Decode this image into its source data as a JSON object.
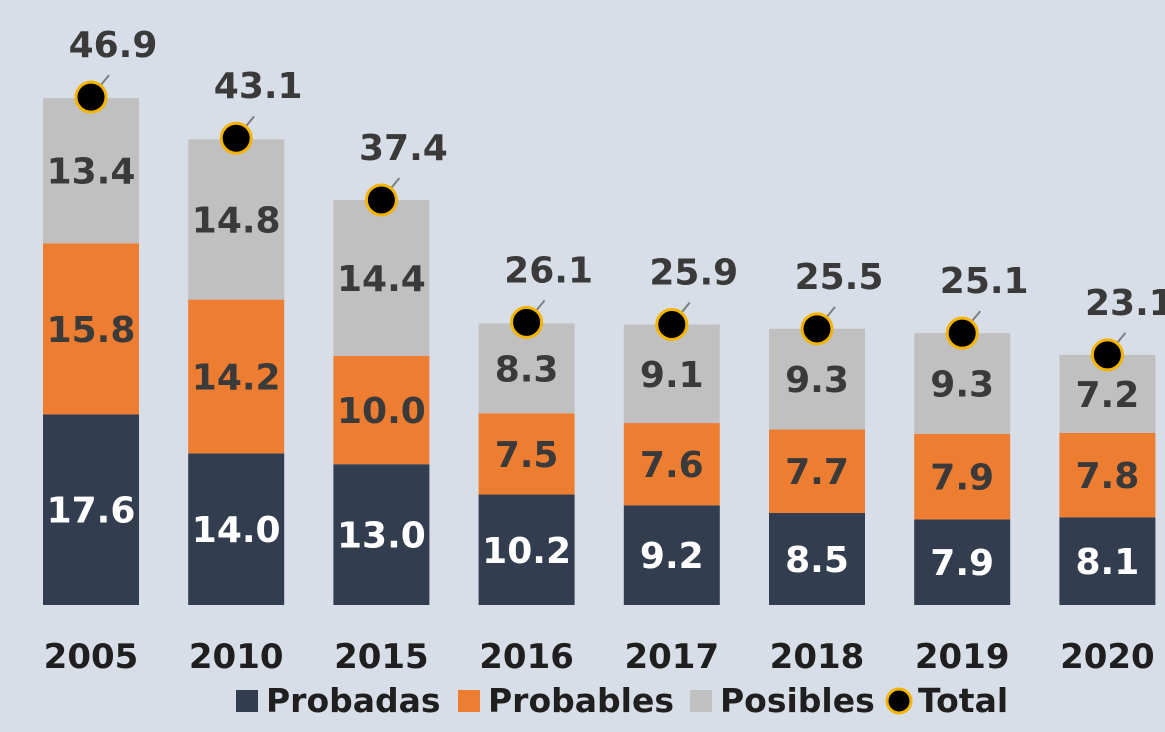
{
  "chart_data": {
    "type": "bar",
    "stacked": true,
    "categories": [
      "2005",
      "2010",
      "2015",
      "2016",
      "2017",
      "2018",
      "2019",
      "2020"
    ],
    "series": [
      {
        "name": "Probadas",
        "color": "#323e4f",
        "label_color": "#ffffff",
        "values": [
          17.6,
          14.0,
          13.0,
          10.2,
          9.2,
          8.5,
          7.9,
          8.1
        ],
        "labels": [
          "17.6",
          "14.0",
          "13.0",
          "10.2",
          "9.2",
          "8.5",
          "7.9",
          "8.1"
        ]
      },
      {
        "name": "Probables",
        "color": "#ed7d31",
        "label_color": "#3a3a3a",
        "values": [
          15.8,
          14.2,
          10.0,
          7.5,
          7.6,
          7.7,
          7.9,
          7.8
        ],
        "labels": [
          "15.8",
          "14.2",
          "10.0",
          "7.5",
          "7.6",
          "7.7",
          "7.9",
          "7.8"
        ]
      },
      {
        "name": "Posibles",
        "color": "#c0c0c0",
        "label_color": "#3a3a3a",
        "values": [
          13.4,
          14.8,
          14.4,
          8.3,
          9.1,
          9.3,
          9.3,
          7.2
        ],
        "labels": [
          "13.4",
          "14.8",
          "14.4",
          "8.3",
          "9.1",
          "9.3",
          "9.3",
          "7.2"
        ]
      }
    ],
    "total": {
      "name": "Total",
      "values": [
        46.9,
        43.1,
        37.4,
        26.1,
        25.9,
        25.5,
        25.1,
        23.1
      ],
      "labels": [
        "46.9",
        "43.1",
        "37.4",
        "26.1",
        "25.9",
        "25.5",
        "25.1",
        "23.1"
      ],
      "marker_color": "#000000",
      "marker_edge_color": "#f5b400"
    },
    "legend_position": "bottom",
    "grid": false
  }
}
